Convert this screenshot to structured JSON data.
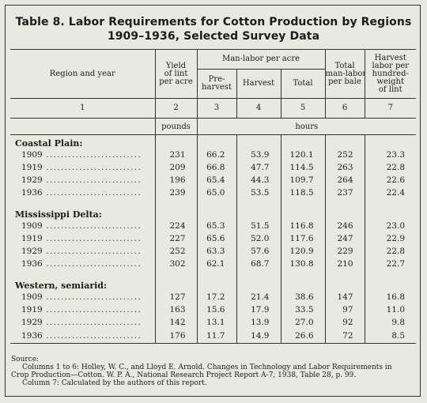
{
  "title_line1": "Table 8. Labor Requirements for Cotton Production by Regions",
  "title_line2": "1909–1936, Selected Survey Data",
  "headers": {
    "region_year": "Region and year",
    "yield": [
      "Yield",
      "of lint",
      "per acre"
    ],
    "man_labor": "Man-labor per acre",
    "pre_harvest": [
      "Pre-",
      "harvest"
    ],
    "harvest": "Harvest",
    "total": "Total",
    "total_bale": [
      "Total",
      "man-labor",
      "per bale"
    ],
    "harvest_cwt": [
      "Harvest",
      "labor per",
      "hundred-",
      "weight",
      "of lint"
    ],
    "col_numbers": [
      "1",
      "2",
      "3",
      "4",
      "5",
      "6",
      "7"
    ]
  },
  "units": {
    "pounds": "pounds",
    "hours": "hours"
  },
  "regions": [
    {
      "name": "Coastal Plain:",
      "rows": [
        {
          "year": "1909",
          "yield": "231",
          "pre": "66.2",
          "harvest": "53.9",
          "total": "120.1",
          "bale": "252",
          "cwt": "23.3"
        },
        {
          "year": "1919",
          "yield": "209",
          "pre": "66.8",
          "harvest": "47.7",
          "total": "114.5",
          "bale": "263",
          "cwt": "22.8"
        },
        {
          "year": "1929",
          "yield": "196",
          "pre": "65.4",
          "harvest": "44.3",
          "total": "109.7",
          "bale": "264",
          "cwt": "22.6"
        },
        {
          "year": "1936",
          "yield": "239",
          "pre": "65.0",
          "harvest": "53.5",
          "total": "118.5",
          "bale": "237",
          "cwt": "22.4"
        }
      ]
    },
    {
      "name": "Mississippi Delta:",
      "rows": [
        {
          "year": "1909",
          "yield": "224",
          "pre": "65.3",
          "harvest": "51.5",
          "total": "116.8",
          "bale": "246",
          "cwt": "23.0"
        },
        {
          "year": "1919",
          "yield": "227",
          "pre": "65.6",
          "harvest": "52.0",
          "total": "117.6",
          "bale": "247",
          "cwt": "22.9"
        },
        {
          "year": "1929",
          "yield": "252",
          "pre": "63.3",
          "harvest": "57.6",
          "total": "120.9",
          "bale": "229",
          "cwt": "22.8"
        },
        {
          "year": "1936",
          "yield": "302",
          "pre": "62.1",
          "harvest": "68.7",
          "total": "130.8",
          "bale": "210",
          "cwt": "22.7"
        }
      ]
    },
    {
      "name": "Western, semiarid:",
      "rows": [
        {
          "year": "1909",
          "yield": "127",
          "pre": "17.2",
          "harvest": "21.4",
          "total": "38.6",
          "bale": "147",
          "cwt": "16.8"
        },
        {
          "year": "1919",
          "yield": "163",
          "pre": "15.6",
          "harvest": "17.9",
          "total": "33.5",
          "bale": "97",
          "cwt": "11.0"
        },
        {
          "year": "1929",
          "yield": "142",
          "pre": "13.1",
          "harvest": "13.9",
          "total": "27.0",
          "bale": "92",
          "cwt": "9.8"
        },
        {
          "year": "1936",
          "yield": "176",
          "pre": "11.7",
          "harvest": "14.9",
          "total": "26.6",
          "bale": "72",
          "cwt": "8.5"
        }
      ]
    }
  ],
  "source": {
    "label": "Source:",
    "line1": "Columns 1 to 6: Holley, W. C., and Lloyd E. Arnold. Changes in Technology and Labor Requirements in",
    "line2": "Crop Production—Cotton. W. P. A., National Research Project Report A-7, 1938, Table 28, p. 99.",
    "line3": "Column 7: Calculated by the authors of this report."
  }
}
